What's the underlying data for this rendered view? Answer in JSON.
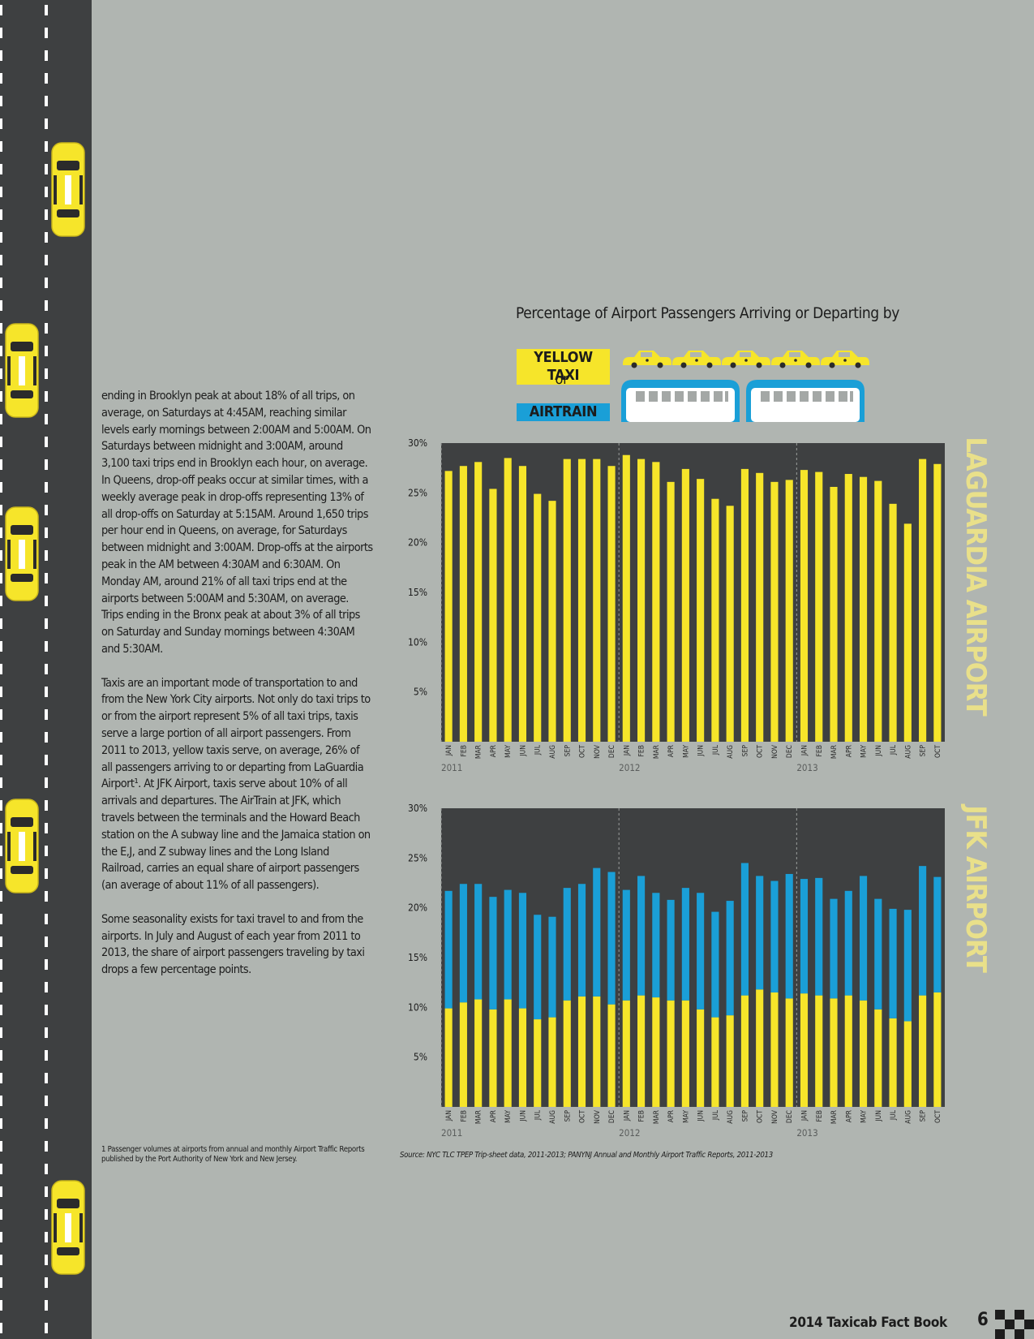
{
  "body_paragraphs": [
    "ending in Brooklyn peak at about 18% of all trips, on average, on Saturdays at 4:45AM, reaching similar levels early mornings between 2:00AM and 5:00AM. On Saturdays between midnight and 3:00AM, around 3,100 taxi trips end in Brooklyn each hour, on average. In Queens, drop-off peaks occur at similar times, with a weekly average peak in drop-offs representing 13% of all drop-offs on Saturday at 5:15AM. Around 1,650 trips per hour end in Queens, on average, for Saturdays between midnight and 3:00AM. Drop-offs at the airports peak in the AM between 4:30AM and 6:30AM. On Monday AM, around 21% of all taxi trips end at the airports between 5:00AM and 5:30AM, on average. Trips ending in the Bronx peak at about 3% of all trips on Saturday and Sunday mornings between 4:30AM and 5:30AM.",
    "Taxis are an important mode of transportation to and from the New York City airports. Not only do taxi trips to or from the airport represent 5% of all taxi trips, taxis serve a large portion of all airport passengers. From 2011 to 2013, yellow taxis serve, on average, 26% of all passengers arriving to or departing from LaGuardia Airport¹. At JFK Airport, taxis serve about 10% of all arrivals and departures. The AirTrain at JFK, which travels between the terminals and the Howard Beach station on the A subway line and the Jamaica station on the E,J, and Z subway lines and the Long Island Railroad, carries an equal share of airport passengers (an average of about 11% of all passengers).",
    "Some seasonality exists for taxi travel to and from the airports. In July and August of each year from 2011 to 2013, the share of airport passengers traveling by taxi drops a few percentage points."
  ],
  "footnote": "1   Passenger volumes at airports from annual and monthly Airport Traffic Reports published by the Port Authority of New York and New Jersey.",
  "source_note": "Source: NYC TLC TPEP Trip-sheet data, 2011-2013; PANYNJ Annual and Monthly Airport Traffic Reports, 2011-2013",
  "figure_title": "Percentage of Airport Passengers Arriving or Departing by",
  "legend": {
    "taxi": "YELLOW TAXI",
    "or": "or",
    "airtrain": "AIRTRAIN"
  },
  "footer": {
    "title": "2014 Taxicab Fact Book",
    "page": "6"
  },
  "colors": {
    "taxi": "#f6e52a",
    "airtrain": "#1a9fd7",
    "plot_bg": "#3e4041",
    "page_bg": "#b0b5b1",
    "side_label": "#e9e08a"
  },
  "chart_data": [
    {
      "type": "bar",
      "side_label": "LAGUARDIA AIRPORT",
      "categories": [
        "JAN",
        "FEB",
        "MAR",
        "APR",
        "MAY",
        "JUN",
        "JUL",
        "AUG",
        "SEP",
        "OCT",
        "NOV",
        "DEC",
        "JAN",
        "FEB",
        "MAR",
        "APR",
        "MAY",
        "JUN",
        "JUL",
        "AUG",
        "SEP",
        "OCT",
        "NOV",
        "DEC",
        "JAN",
        "FEB",
        "MAR",
        "APR",
        "MAY",
        "JUN",
        "JUL",
        "AUG",
        "SEP",
        "OCT"
      ],
      "year_labels": [
        {
          "label": "2011",
          "start_index": 0
        },
        {
          "label": "2012",
          "start_index": 12
        },
        {
          "label": "2013",
          "start_index": 24
        }
      ],
      "series": [
        {
          "name": "YELLOW TAXI",
          "values": [
            27.2,
            27.7,
            28.1,
            25.4,
            28.5,
            27.7,
            24.9,
            24.2,
            28.4,
            28.4,
            28.4,
            27.7,
            28.8,
            28.4,
            28.1,
            26.1,
            27.4,
            26.4,
            24.4,
            23.7,
            27.4,
            27.0,
            26.1,
            26.3,
            27.3,
            27.1,
            25.6,
            26.9,
            26.6,
            26.2,
            23.9,
            21.9,
            28.4,
            27.9
          ]
        }
      ],
      "ylim": [
        0,
        30
      ],
      "yticks": [
        "5%",
        "10%",
        "15%",
        "20%",
        "25%",
        "30%"
      ],
      "ytick_values": [
        5,
        10,
        15,
        20,
        25,
        30
      ]
    },
    {
      "type": "bar",
      "stacked": true,
      "side_label": "JFK AIRPORT",
      "categories": [
        "JAN",
        "FEB",
        "MAR",
        "APR",
        "MAY",
        "JUN",
        "JUL",
        "AUG",
        "SEP",
        "OCT",
        "NOV",
        "DEC",
        "JAN",
        "FEB",
        "MAR",
        "APR",
        "MAY",
        "JUN",
        "JUL",
        "AUG",
        "SEP",
        "OCT",
        "NOV",
        "DEC",
        "JAN",
        "FEB",
        "MAR",
        "APR",
        "MAY",
        "JUN",
        "JUL",
        "AUG",
        "SEP",
        "OCT"
      ],
      "year_labels": [
        {
          "label": "2011",
          "start_index": 0
        },
        {
          "label": "2012",
          "start_index": 12
        },
        {
          "label": "2013",
          "start_index": 24
        }
      ],
      "series": [
        {
          "name": "YELLOW TAXI",
          "values": [
            9.9,
            10.5,
            10.8,
            9.8,
            10.8,
            9.9,
            8.8,
            9.0,
            10.7,
            11.1,
            11.1,
            10.3,
            10.7,
            11.2,
            11.0,
            10.7,
            10.7,
            9.8,
            9.0,
            9.2,
            11.2,
            11.8,
            11.5,
            10.9,
            11.4,
            11.2,
            10.9,
            11.2,
            10.7,
            9.8,
            8.9,
            8.6,
            11.2,
            11.5
          ]
        },
        {
          "name": "AIRTRAIN",
          "values": [
            11.8,
            11.9,
            11.6,
            11.3,
            11.0,
            11.6,
            10.5,
            10.1,
            11.3,
            11.3,
            12.9,
            13.3,
            11.1,
            12.0,
            10.5,
            10.1,
            11.3,
            11.7,
            10.6,
            11.5,
            13.3,
            11.4,
            11.2,
            12.5,
            11.5,
            11.8,
            10.0,
            10.5,
            12.5,
            11.1,
            11.0,
            11.2,
            13.0,
            11.6
          ]
        }
      ],
      "ylim": [
        0,
        30
      ],
      "yticks": [
        "5%",
        "10%",
        "15%",
        "20%",
        "25%",
        "30%"
      ],
      "ytick_values": [
        5,
        10,
        15,
        20,
        25,
        30
      ]
    }
  ]
}
